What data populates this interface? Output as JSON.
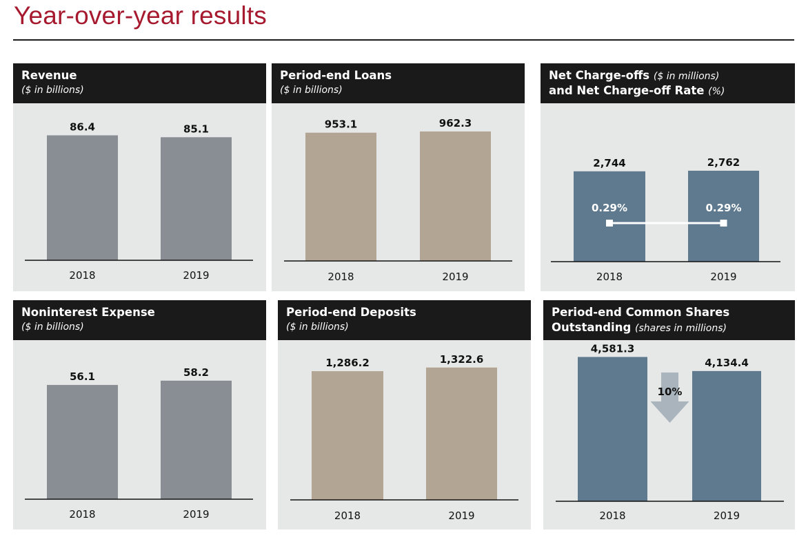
{
  "page": {
    "title": "Year-over-year results"
  },
  "colors": {
    "title": "#a6192e",
    "gray_bar": "#898d94",
    "tan_bar": "#b3a594",
    "blue_bar": "#5f7a8f",
    "header_bg": "#1a1a1a",
    "panel_bg": "#e6e7e7",
    "arrow": "#a9b4bd"
  },
  "chart_data": [
    {
      "type": "bar",
      "title": "Revenue",
      "subtitle": "($ in billions)",
      "categories": [
        "2018",
        "2019"
      ],
      "values": [
        86.4,
        85.1
      ],
      "value_labels": [
        "86.4",
        "85.1"
      ],
      "ylim": [
        0,
        100
      ],
      "color": "#898d94"
    },
    {
      "type": "bar",
      "title": "Period-end Loans",
      "subtitle": "($ in billions)",
      "categories": [
        "2018",
        "2019"
      ],
      "values": [
        953.1,
        962.3
      ],
      "value_labels": [
        "953.1",
        "962.3"
      ],
      "ylim": [
        0,
        1100
      ],
      "color": "#b3a594"
    },
    {
      "type": "bar",
      "title": "Net Charge-offs",
      "title_unit": "($ in millions)",
      "title_line2": "and Net Charge-off Rate",
      "title_line2_unit": "(%)",
      "categories": [
        "2018",
        "2019"
      ],
      "values": [
        2744,
        2762
      ],
      "value_labels": [
        "2,744",
        "2,762"
      ],
      "ylim": [
        0,
        3200
      ],
      "color": "#5f7a8f",
      "rate": {
        "values": [
          0.29,
          0.29
        ],
        "labels": [
          "0.29%",
          "0.29%"
        ]
      }
    },
    {
      "type": "bar",
      "title": "Noninterest Expense",
      "subtitle": "($ in billions)",
      "categories": [
        "2018",
        "2019"
      ],
      "values": [
        56.1,
        58.2
      ],
      "value_labels": [
        "56.1",
        "58.2"
      ],
      "ylim": [
        0,
        71
      ],
      "color": "#898d94"
    },
    {
      "type": "bar",
      "title": "Period-end Deposits",
      "subtitle": "($ in billions)",
      "categories": [
        "2018",
        "2019"
      ],
      "values": [
        1286.2,
        1322.6
      ],
      "value_labels": [
        "1,286.2",
        "1,322.6"
      ],
      "ylim": [
        0,
        1500
      ],
      "color": "#b3a594"
    },
    {
      "type": "bar",
      "title": "Period-end Common Shares",
      "title_line2": "Outstanding",
      "title_line2_unit": "(shares in millions)",
      "categories": [
        "2018",
        "2019"
      ],
      "values": [
        4581.3,
        4134.4
      ],
      "value_labels": [
        "4,581.3",
        "4,134.4"
      ],
      "ylim": [
        0,
        4700
      ],
      "color": "#5f7a8f",
      "change": {
        "label": "10%",
        "direction": "down"
      }
    }
  ]
}
